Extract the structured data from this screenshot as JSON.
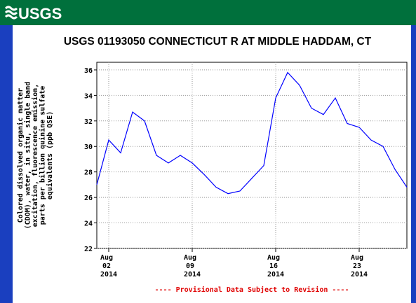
{
  "header": {
    "logo": "USGS"
  },
  "chart_data": {
    "type": "line",
    "title": "USGS 01193050 CONNECTICUT R AT MIDDLE HADDAM, CT",
    "ylabel": [
      "Colored dissolved organic matter",
      "(CDOM), water, in situ, single band",
      "excitation, fluorescence emission,",
      "parts per billion quinine sulfate",
      "equivalents (ppb QSE)"
    ],
    "x": [
      "2014-08-01",
      "2014-08-02",
      "2014-08-03",
      "2014-08-04",
      "2014-08-05",
      "2014-08-06",
      "2014-08-07",
      "2014-08-08",
      "2014-08-09",
      "2014-08-10",
      "2014-08-11",
      "2014-08-12",
      "2014-08-13",
      "2014-08-14",
      "2014-08-15",
      "2014-08-16",
      "2014-08-17",
      "2014-08-18",
      "2014-08-19",
      "2014-08-20",
      "2014-08-21",
      "2014-08-22",
      "2014-08-23",
      "2014-08-24",
      "2014-08-25",
      "2014-08-26",
      "2014-08-27"
    ],
    "series": [
      {
        "name": "CDOM",
        "color": "#0000ff",
        "values": [
          27.0,
          30.5,
          29.5,
          32.7,
          32.0,
          29.3,
          28.7,
          29.3,
          28.7,
          27.8,
          26.8,
          26.3,
          26.5,
          27.5,
          28.5,
          33.8,
          35.8,
          34.8,
          33.0,
          32.5,
          33.8,
          31.8,
          31.5,
          30.5,
          30.0,
          28.2,
          26.8
        ]
      }
    ],
    "xlim": [
      "2014-08-01",
      "2014-08-27"
    ],
    "xticks": [
      {
        "value": "2014-08-02",
        "label": "Aug 02 2014"
      },
      {
        "value": "2014-08-09",
        "label": "Aug 09 2014"
      },
      {
        "value": "2014-08-16",
        "label": "Aug 16 2014"
      },
      {
        "value": "2014-08-23",
        "label": "Aug 23 2014"
      }
    ],
    "ylim": [
      22,
      36.6
    ],
    "yticks": [
      22,
      24,
      26,
      28,
      30,
      32,
      34,
      36
    ],
    "grid": true,
    "note": "---- Provisional Data Subject to Revision ----"
  }
}
